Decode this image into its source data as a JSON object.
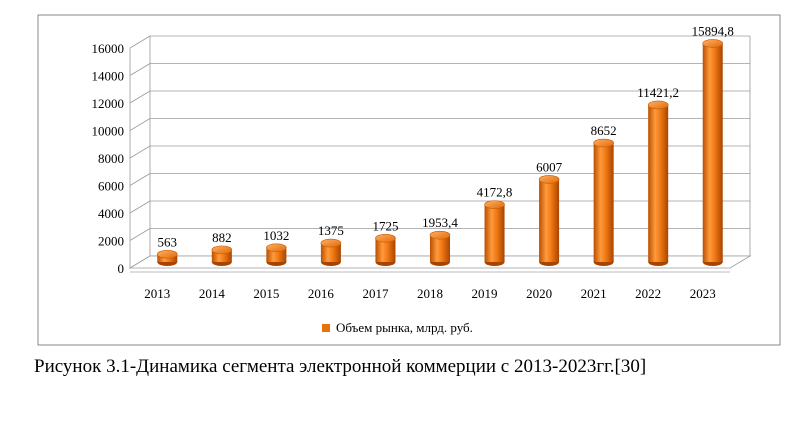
{
  "caption": "Рисунок 3.1-Динамика сегмента электронной коммерции с 2013-2023гг.[30]",
  "chart_data": {
    "type": "bar",
    "title": "",
    "xlabel": "",
    "ylabel": "",
    "categories": [
      "2013",
      "2014",
      "2015",
      "2016",
      "2017",
      "2018",
      "2019",
      "2020",
      "2021",
      "2022",
      "2023"
    ],
    "series": [
      {
        "name": "Объем рынка, млрд. руб.",
        "values": [
          563,
          882,
          1032,
          1375,
          1725,
          1953.4,
          4172.8,
          6007,
          8652,
          11421.2,
          15894.8
        ],
        "data_labels": [
          "563",
          "882",
          "1032",
          "1375",
          "1725",
          "1953,4",
          "4172,8",
          "6007",
          "8652",
          "11421,2",
          "15894,8"
        ],
        "color": "#e8730c"
      }
    ],
    "ylim": [
      0,
      16000
    ],
    "yticks": [
      0,
      2000,
      4000,
      6000,
      8000,
      10000,
      12000,
      14000,
      16000
    ],
    "grid": true,
    "legend_position": "bottom",
    "style": "3d-cylinder"
  }
}
